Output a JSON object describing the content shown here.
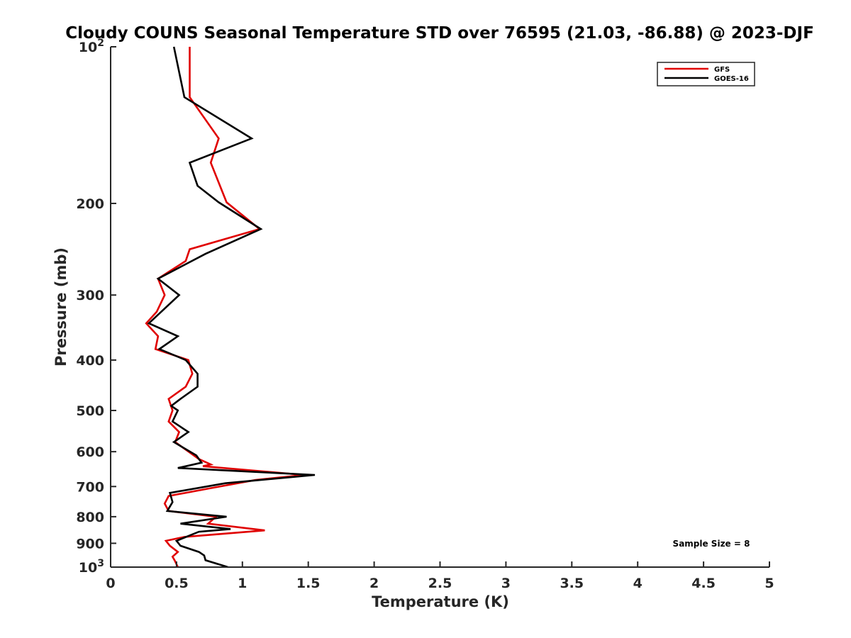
{
  "chart_data": {
    "type": "line",
    "title": "Cloudy COUNS Seasonal Temperature STD over 76595 (21.03, -86.88) @ 2023-DJF",
    "xlabel": "Temperature (K)",
    "ylabel": "Pressure (mb)",
    "xlim": [
      0,
      5
    ],
    "ylim": [
      100,
      1000
    ],
    "yscale": "log",
    "y_reversed": true,
    "x_ticks": [
      0,
      0.5,
      1,
      1.5,
      2,
      2.5,
      3,
      3.5,
      4,
      4.5,
      5
    ],
    "x_tick_labels": [
      "0",
      "0.5",
      "1",
      "1.5",
      "2",
      "2.5",
      "3",
      "3.5",
      "4",
      "4.5",
      "5"
    ],
    "y_ticks": [
      {
        "value": 100,
        "base": "10",
        "exp": "2"
      },
      {
        "value": 200,
        "label": "200"
      },
      {
        "value": 300,
        "label": "300"
      },
      {
        "value": 400,
        "label": "400"
      },
      {
        "value": 500,
        "label": "500"
      },
      {
        "value": 600,
        "label": "600"
      },
      {
        "value": 700,
        "label": "700"
      },
      {
        "value": 800,
        "label": "800"
      },
      {
        "value": 900,
        "label": "900"
      },
      {
        "value": 1000,
        "base": "10",
        "exp": "3"
      }
    ],
    "legend_position": "top-right",
    "annotation": "Sample Size = 8",
    "series": [
      {
        "name": "GFS",
        "color": "#e00000",
        "points": [
          [
            0.6,
            100
          ],
          [
            0.6,
            125
          ],
          [
            0.82,
            150
          ],
          [
            0.76,
            167
          ],
          [
            0.88,
            199
          ],
          [
            1.13,
            224
          ],
          [
            0.6,
            245
          ],
          [
            0.57,
            258
          ],
          [
            0.36,
            279
          ],
          [
            0.41,
            300
          ],
          [
            0.35,
            323
          ],
          [
            0.27,
            340
          ],
          [
            0.36,
            360
          ],
          [
            0.34,
            381
          ],
          [
            0.59,
            400
          ],
          [
            0.62,
            425
          ],
          [
            0.57,
            450
          ],
          [
            0.44,
            475
          ],
          [
            0.47,
            500
          ],
          [
            0.44,
            525
          ],
          [
            0.52,
            550
          ],
          [
            0.49,
            575
          ],
          [
            0.67,
            620
          ],
          [
            0.76,
            635
          ],
          [
            0.7,
            640
          ],
          [
            1.47,
            665
          ],
          [
            1.1,
            680
          ],
          [
            0.76,
            705
          ],
          [
            0.44,
            730
          ],
          [
            0.41,
            755
          ],
          [
            0.44,
            780
          ],
          [
            0.8,
            800
          ],
          [
            0.74,
            825
          ],
          [
            1.17,
            850
          ],
          [
            0.56,
            875
          ],
          [
            0.42,
            890
          ],
          [
            0.45,
            910
          ],
          [
            0.51,
            935
          ],
          [
            0.47,
            955
          ],
          [
            0.49,
            975
          ],
          [
            0.51,
            1000
          ]
        ]
      },
      {
        "name": "GOES-16",
        "color": "#000000",
        "points": [
          [
            0.48,
            100
          ],
          [
            0.56,
            125
          ],
          [
            1.07,
            150
          ],
          [
            0.6,
            167
          ],
          [
            0.66,
            185
          ],
          [
            0.82,
            199
          ],
          [
            1.14,
            224
          ],
          [
            0.72,
            250
          ],
          [
            0.36,
            279
          ],
          [
            0.52,
            300
          ],
          [
            0.29,
            340
          ],
          [
            0.51,
            360
          ],
          [
            0.37,
            381
          ],
          [
            0.57,
            400
          ],
          [
            0.66,
            425
          ],
          [
            0.66,
            450
          ],
          [
            0.53,
            475
          ],
          [
            0.46,
            490
          ],
          [
            0.51,
            500
          ],
          [
            0.47,
            525
          ],
          [
            0.59,
            550
          ],
          [
            0.48,
            575
          ],
          [
            0.65,
            610
          ],
          [
            0.69,
            630
          ],
          [
            0.51,
            645
          ],
          [
            1.55,
            665
          ],
          [
            0.87,
            690
          ],
          [
            0.45,
            720
          ],
          [
            0.47,
            750
          ],
          [
            0.43,
            780
          ],
          [
            0.88,
            800
          ],
          [
            0.53,
            825
          ],
          [
            0.91,
            845
          ],
          [
            0.67,
            855
          ],
          [
            0.5,
            890
          ],
          [
            0.53,
            910
          ],
          [
            0.67,
            935
          ],
          [
            0.71,
            950
          ],
          [
            0.72,
            970
          ],
          [
            0.89,
            1000
          ]
        ]
      }
    ]
  }
}
